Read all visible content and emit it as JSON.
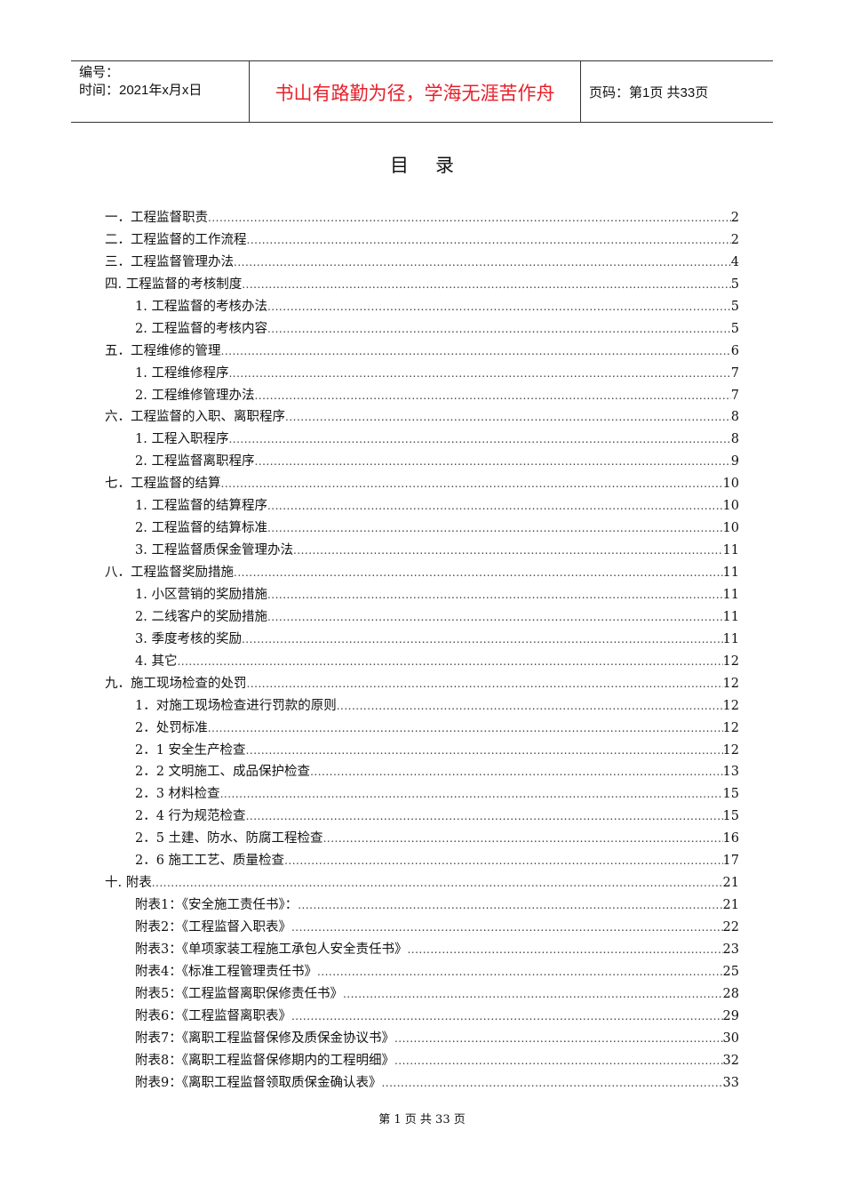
{
  "header": {
    "number_label": "编号：",
    "time_label": "时间：2021年x月x日",
    "motto": "书山有路勤为径，学海无涯苦作舟",
    "page_info": "页码：第1页  共33页"
  },
  "title": "目录",
  "toc": [
    {
      "label": "一．工程监督职责",
      "page": "2",
      "level": 0
    },
    {
      "label": "二．工程监督的工作流程",
      "page": "2",
      "level": 0
    },
    {
      "label": "三．工程监督管理办法",
      "page": "4",
      "level": 0
    },
    {
      "label": "四. 工程监督的考核制度",
      "page": "5",
      "level": 0
    },
    {
      "label": "1. 工程监督的考核办法",
      "page": "5",
      "level": 1
    },
    {
      "label": "2. 工程监督的考核内容",
      "page": "5",
      "level": 1
    },
    {
      "label": "五．工程维修的管理",
      "page": "6",
      "level": 0
    },
    {
      "label": "1. 工程维修程序",
      "page": "7",
      "level": 1
    },
    {
      "label": "2. 工程维修管理办法",
      "page": "7",
      "level": 1
    },
    {
      "label": "六．工程监督的入职、离职程序",
      "page": "8",
      "level": 0
    },
    {
      "label": "1. 工程入职程序",
      "page": "8",
      "level": 1
    },
    {
      "label": "2. 工程监督离职程序",
      "page": "9",
      "level": 1
    },
    {
      "label": "七．工程监督的结算",
      "page": "10",
      "level": 0
    },
    {
      "label": "1. 工程监督的结算程序",
      "page": "10",
      "level": 1
    },
    {
      "label": "2. 工程监督的结算标准",
      "page": "10",
      "level": 1
    },
    {
      "label": "3. 工程监督质保金管理办法",
      "page": "11",
      "level": 1
    },
    {
      "label": "八．工程监督奖励措施",
      "page": "11",
      "level": 0
    },
    {
      "label": "1. 小区营销的奖励措施",
      "page": "11",
      "level": 1
    },
    {
      "label": "2. 二线客户的奖励措施",
      "page": "11",
      "level": 1
    },
    {
      "label": "3. 季度考核的奖励",
      "page": "11",
      "level": 1
    },
    {
      "label": "4. 其它",
      "page": "12",
      "level": 1
    },
    {
      "label": "九．施工现场检查的处罚",
      "page": "12",
      "level": 0
    },
    {
      "label": "1．对施工现场检查进行罚款的原则",
      "page": "12",
      "level": 1
    },
    {
      "label": "2．处罚标准",
      "page": "12",
      "level": 1
    },
    {
      "label": "2．1 安全生产检查",
      "page": "12",
      "level": 1
    },
    {
      "label": "2．2 文明施工、成品保护检查",
      "page": "13",
      "level": 1
    },
    {
      "label": "2．3 材料检查",
      "page": "15",
      "level": 1
    },
    {
      "label": "2．4 行为规范检查",
      "page": "15",
      "level": 1
    },
    {
      "label": "2．5 土建、防水、防腐工程检查",
      "page": "16",
      "level": 1
    },
    {
      "label": "2．6 施工工艺、质量检查",
      "page": "17",
      "level": 1
    },
    {
      "label": "十. 附表",
      "page": "21",
      "level": 0
    },
    {
      "label": "附表1：《安全施工责任书》：",
      "page": "21",
      "level": 1
    },
    {
      "label": "附表2：《工程监督入职表》",
      "page": "22",
      "level": 1
    },
    {
      "label": "附表3：《单项家装工程施工承包人安全责任书》",
      "page": "23",
      "level": 1
    },
    {
      "label": "附表4：《标准工程管理责任书》",
      "page": "25",
      "level": 1
    },
    {
      "label": "附表5：《工程监督离职保修责任书》",
      "page": "28",
      "level": 1
    },
    {
      "label": "附表6：《工程监督离职表》",
      "page": "29",
      "level": 1
    },
    {
      "label": "附表7：《离职工程监督保修及质保金协议书》",
      "page": "30",
      "level": 1
    },
    {
      "label": "附表8：《离职工程监督保修期内的工程明细》",
      "page": "32",
      "level": 1
    },
    {
      "label": "附表9：《离职工程监督领取质保金确认表》",
      "page": "33",
      "level": 1
    }
  ],
  "footer": "第 1 页 共 33 页",
  "colors": {
    "motto": "#e8202a"
  }
}
